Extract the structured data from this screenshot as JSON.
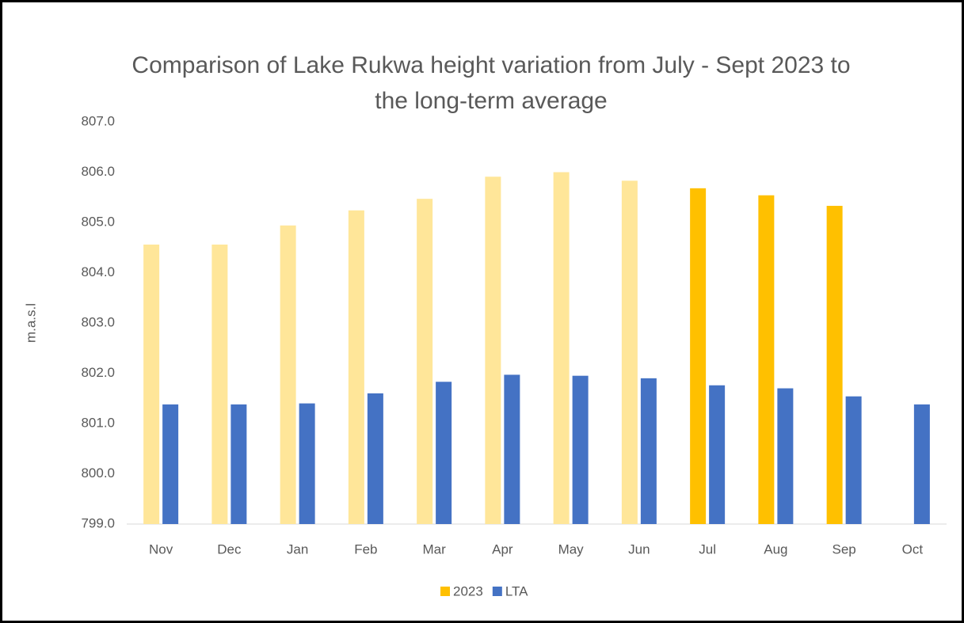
{
  "chart_data": {
    "type": "bar",
    "title": "Comparison of Lake Rukwa height variation from July - Sept 2023 to the long-term average",
    "y_label": "m.a.s.l",
    "categories": [
      "Nov",
      "Dec",
      "Jan",
      "Feb",
      "Mar",
      "Apr",
      "May",
      "Jun",
      "Jul",
      "Aug",
      "Sep",
      "Oct"
    ],
    "series": [
      {
        "name": "2023",
        "color": "#ffc000",
        "colors": [
          "#ffe699",
          "#ffe699",
          "#ffe699",
          "#ffe699",
          "#ffe699",
          "#ffe699",
          "#ffe699",
          "#ffe699",
          "#ffc000",
          "#ffc000",
          "#ffc000",
          "#ffc000"
        ],
        "values": [
          804.56,
          804.56,
          804.94,
          805.24,
          805.47,
          805.91,
          806.0,
          805.83,
          805.68,
          805.54,
          805.33,
          null
        ]
      },
      {
        "name": "LTA",
        "color": "#4472c4",
        "values": [
          801.38,
          801.38,
          801.4,
          801.6,
          801.83,
          801.97,
          801.95,
          801.9,
          801.76,
          801.7,
          801.54,
          801.38
        ]
      }
    ],
    "ylim": [
      799,
      807
    ],
    "yticks": [
      {
        "value": 799,
        "label": "799.0"
      },
      {
        "value": 800,
        "label": "800.0"
      },
      {
        "value": 801,
        "label": "801.0"
      },
      {
        "value": 802,
        "label": "802.0"
      },
      {
        "value": 803,
        "label": "803.0"
      },
      {
        "value": 804,
        "label": "804.0"
      },
      {
        "value": 805,
        "label": "805.0"
      },
      {
        "value": 806,
        "label": "806.0"
      },
      {
        "value": 807,
        "label": "807.0"
      }
    ],
    "grid": false,
    "legend": "bottom"
  }
}
